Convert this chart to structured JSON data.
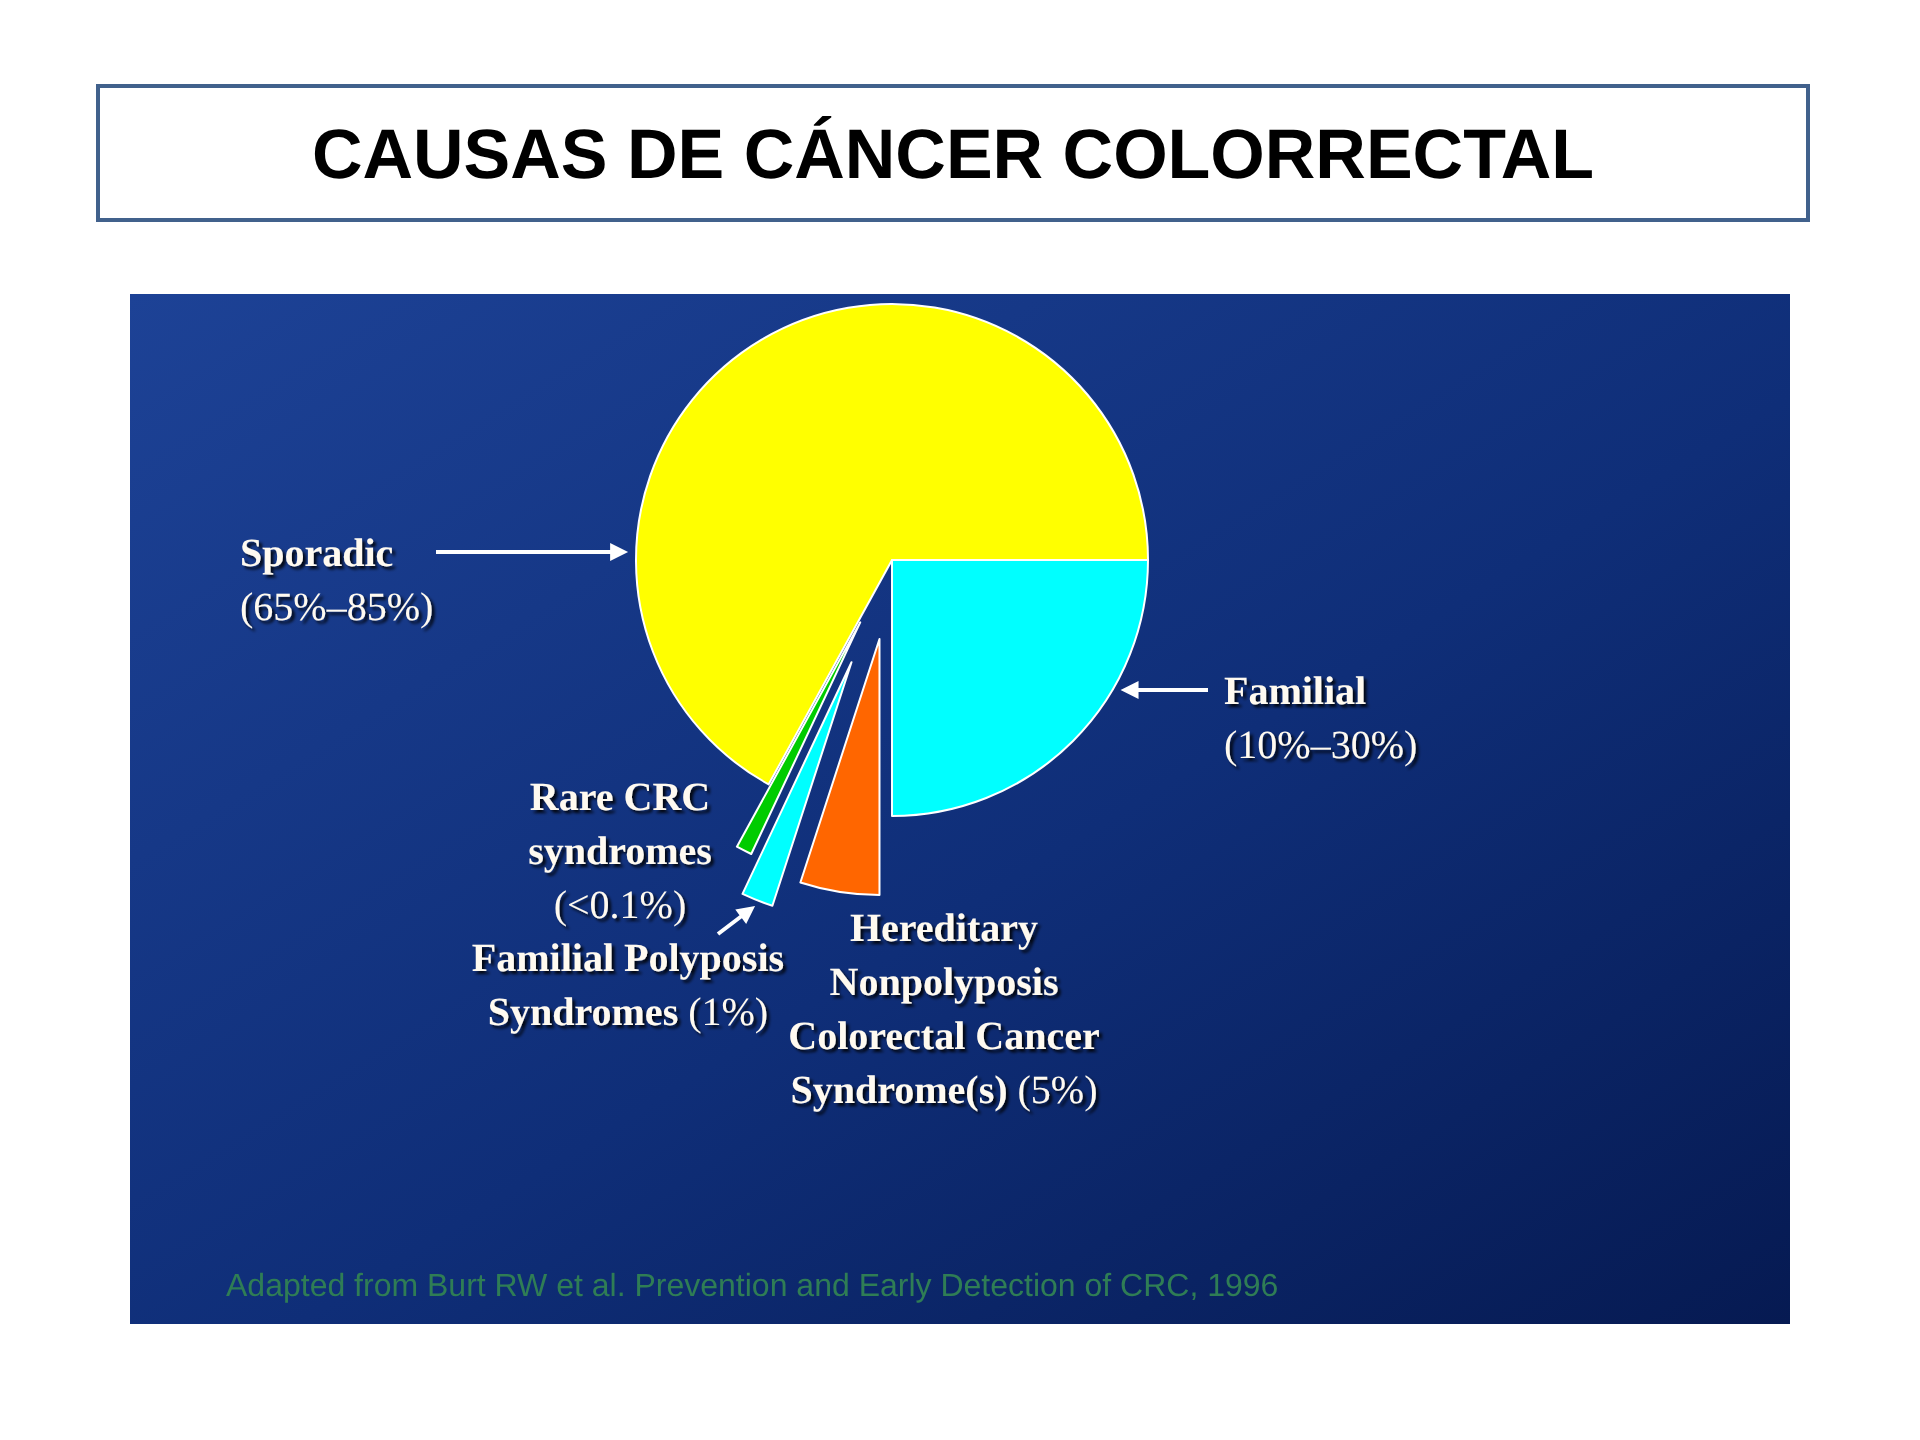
{
  "chart_data": {
    "type": "pie",
    "title": "CAUSAS DE CÁNCER COLORRECTAL",
    "categories": [
      "Sporadic\n(65%–85%)",
      "Familial\n(10%–30%)",
      "Hereditary\nNonpolyposis\nColorectal Cancer\nSyndrome(s) (5%)",
      "Familial Polyposis\nSyndromes (1%)",
      "Rare CRC\nsyndromes\n(<0.1%)"
    ],
    "values": [
      67,
      25,
      5,
      2,
      1
    ],
    "colors": [
      "#ffff00",
      "#00ffff",
      "#ff6600",
      "#00ffff",
      "#00cc00"
    ],
    "annotations": [
      "Adapted from Burt RW et al. Prevention and Early Detection of CRC, 1996"
    ]
  }
}
